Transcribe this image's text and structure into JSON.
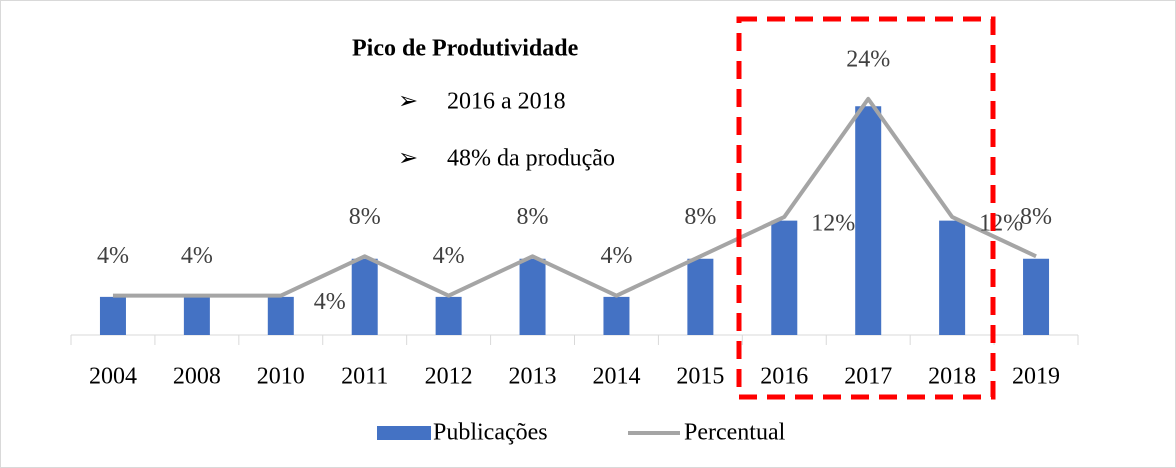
{
  "chart_data": {
    "type": "bar",
    "annotation": {
      "title": "Pico de Produtividade",
      "items": [
        "2016 a 2018",
        "48% da produção"
      ]
    },
    "categories": [
      "2004",
      "2008",
      "2010",
      "2011",
      "2012",
      "2013",
      "2014",
      "2015",
      "2016",
      "2017",
      "2018",
      "2019"
    ],
    "series": [
      {
        "name": "Publicações",
        "type": "bar",
        "color": "#4472c4",
        "values": [
          1,
          1,
          1,
          2,
          1,
          2,
          1,
          2,
          3,
          6,
          3,
          2
        ]
      },
      {
        "name": "Percentual",
        "type": "line",
        "axis": "y2",
        "color": "#a5a5a5",
        "values": [
          4,
          4,
          4,
          8,
          4,
          8,
          4,
          8,
          12,
          24,
          12,
          8
        ],
        "value_labels": [
          "4%",
          "4%",
          "4%",
          "8%",
          "4%",
          "8%",
          "4%",
          "8%",
          "12%",
          "24%",
          "12%",
          "8%"
        ]
      }
    ],
    "ylim": [
      0,
      8
    ],
    "y2lim": [
      0,
      31
    ],
    "legend": "bottom"
  }
}
